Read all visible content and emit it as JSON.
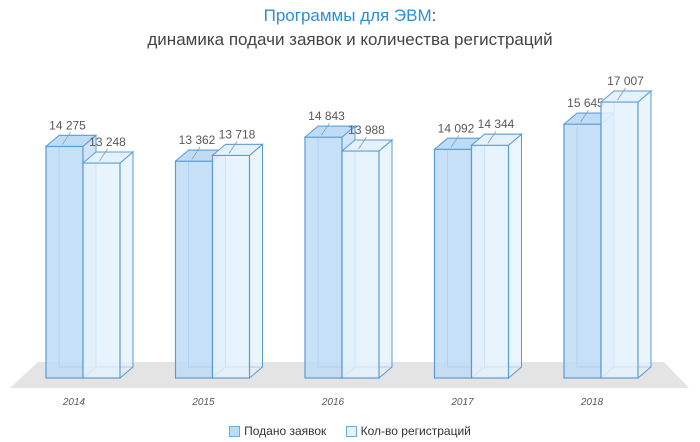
{
  "title_part1": "Программы для ЭВМ",
  "title_colon": ":",
  "subtitle": "динамика подачи заявок и количества регистраций",
  "chart_data": {
    "type": "bar",
    "categories": [
      "2014",
      "2015",
      "2016",
      "2017",
      "2018"
    ],
    "series": [
      {
        "name": "Подано заявок",
        "values": [
          14275,
          13362,
          14843,
          14092,
          15645
        ],
        "labels": [
          "14 275",
          "13 362",
          "14 843",
          "14 092",
          "15 645"
        ]
      },
      {
        "name": "Кол-во регистраций",
        "values": [
          13248,
          13718,
          13988,
          14344,
          17007
        ],
        "labels": [
          "13 248",
          "13 718",
          "13 988",
          "14 344",
          "17 007"
        ]
      }
    ],
    "ylim": [
      0,
      17500
    ],
    "grid": false,
    "legend": "bottom",
    "colors": {
      "series1_front": "#bfdcf6",
      "series2_front": "#e4f2fd",
      "edge": "#5b9bd5",
      "title": "#2e8fd0",
      "floor": "#e4e4e4"
    }
  }
}
